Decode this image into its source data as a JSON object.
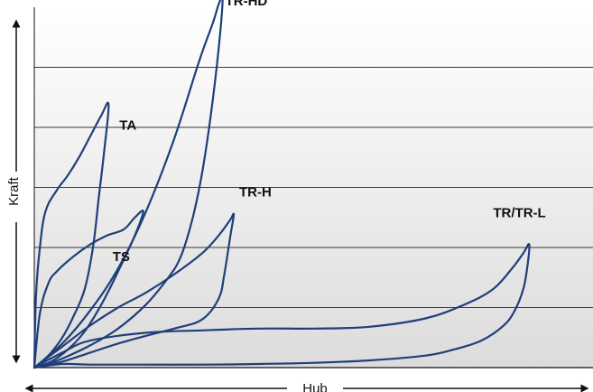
{
  "chart_data": {
    "type": "line",
    "xlabel": "Hub",
    "ylabel": "Kraft",
    "xlim": [
      0,
      100
    ],
    "ylim": [
      0,
      6
    ],
    "grid": true,
    "colors": {
      "series": "#1f3f7a",
      "grid": "#3a3a3a",
      "axis": "#111111",
      "background_top": "#ffffff",
      "background_bottom": "#dcdcdc"
    },
    "series": [
      {
        "name": "TA",
        "x": [
          0,
          0.3,
          1,
          2,
          4,
          6,
          8,
          10,
          12,
          13.3,
          12.5,
          11.5,
          10.5,
          9,
          7,
          5,
          3,
          1,
          0
        ],
        "y": [
          0,
          1.2,
          2,
          2.6,
          2.95,
          3.2,
          3.5,
          3.85,
          4.2,
          4.38,
          3.6,
          2.8,
          2.0,
          1.3,
          0.85,
          0.5,
          0.25,
          0.07,
          0
        ]
      },
      {
        "name": "TS",
        "x": [
          0,
          1,
          2.5,
          4,
          7,
          10,
          13,
          16,
          18,
          19.5,
          18,
          15,
          12,
          9,
          6,
          3,
          0
        ],
        "y": [
          0,
          0.9,
          1.4,
          1.6,
          1.85,
          2.05,
          2.2,
          2.3,
          2.5,
          2.6,
          2.2,
          1.6,
          1.05,
          0.6,
          0.3,
          0.1,
          0
        ]
      },
      {
        "name": "TR-HD",
        "x": [
          0,
          5,
          10,
          15,
          20,
          25,
          29.5,
          32,
          33,
          33.7,
          33.2,
          32,
          30.5,
          29,
          27.5,
          26,
          24,
          20,
          15,
          10,
          5,
          2,
          0
        ],
        "y": [
          0,
          0.4,
          0.95,
          1.65,
          2.6,
          3.8,
          5.1,
          5.75,
          6.05,
          6.15,
          5.5,
          4.5,
          3.5,
          2.75,
          2.2,
          1.8,
          1.5,
          1.05,
          0.65,
          0.37,
          0.15,
          0.05,
          0
        ]
      },
      {
        "name": "TR-H",
        "x": [
          0,
          5,
          10,
          15,
          20,
          25,
          30,
          33,
          35,
          35.7,
          35.1,
          34,
          33,
          30,
          25,
          20,
          15,
          10,
          5,
          0
        ],
        "y": [
          0,
          0.35,
          0.7,
          1.0,
          1.25,
          1.55,
          1.9,
          2.2,
          2.45,
          2.55,
          2.2,
          1.55,
          1.15,
          0.8,
          0.65,
          0.53,
          0.4,
          0.25,
          0.1,
          0
        ]
      },
      {
        "name": "TR/TR-L",
        "x": [
          0,
          5,
          10,
          20,
          30,
          40,
          50,
          60,
          70,
          77,
          82,
          85.5,
          87.5,
          88.6,
          88.2,
          87.5,
          86,
          84,
          80,
          75,
          70,
          60,
          50,
          40,
          30,
          20,
          10,
          5,
          0
        ],
        "y": [
          0,
          0.25,
          0.45,
          0.58,
          0.62,
          0.65,
          0.65,
          0.68,
          0.82,
          1.05,
          1.3,
          1.65,
          1.9,
          2.05,
          1.65,
          1.3,
          0.95,
          0.7,
          0.45,
          0.3,
          0.2,
          0.12,
          0.08,
          0.06,
          0.05,
          0.05,
          0.05,
          0.06,
          0
        ]
      }
    ]
  }
}
